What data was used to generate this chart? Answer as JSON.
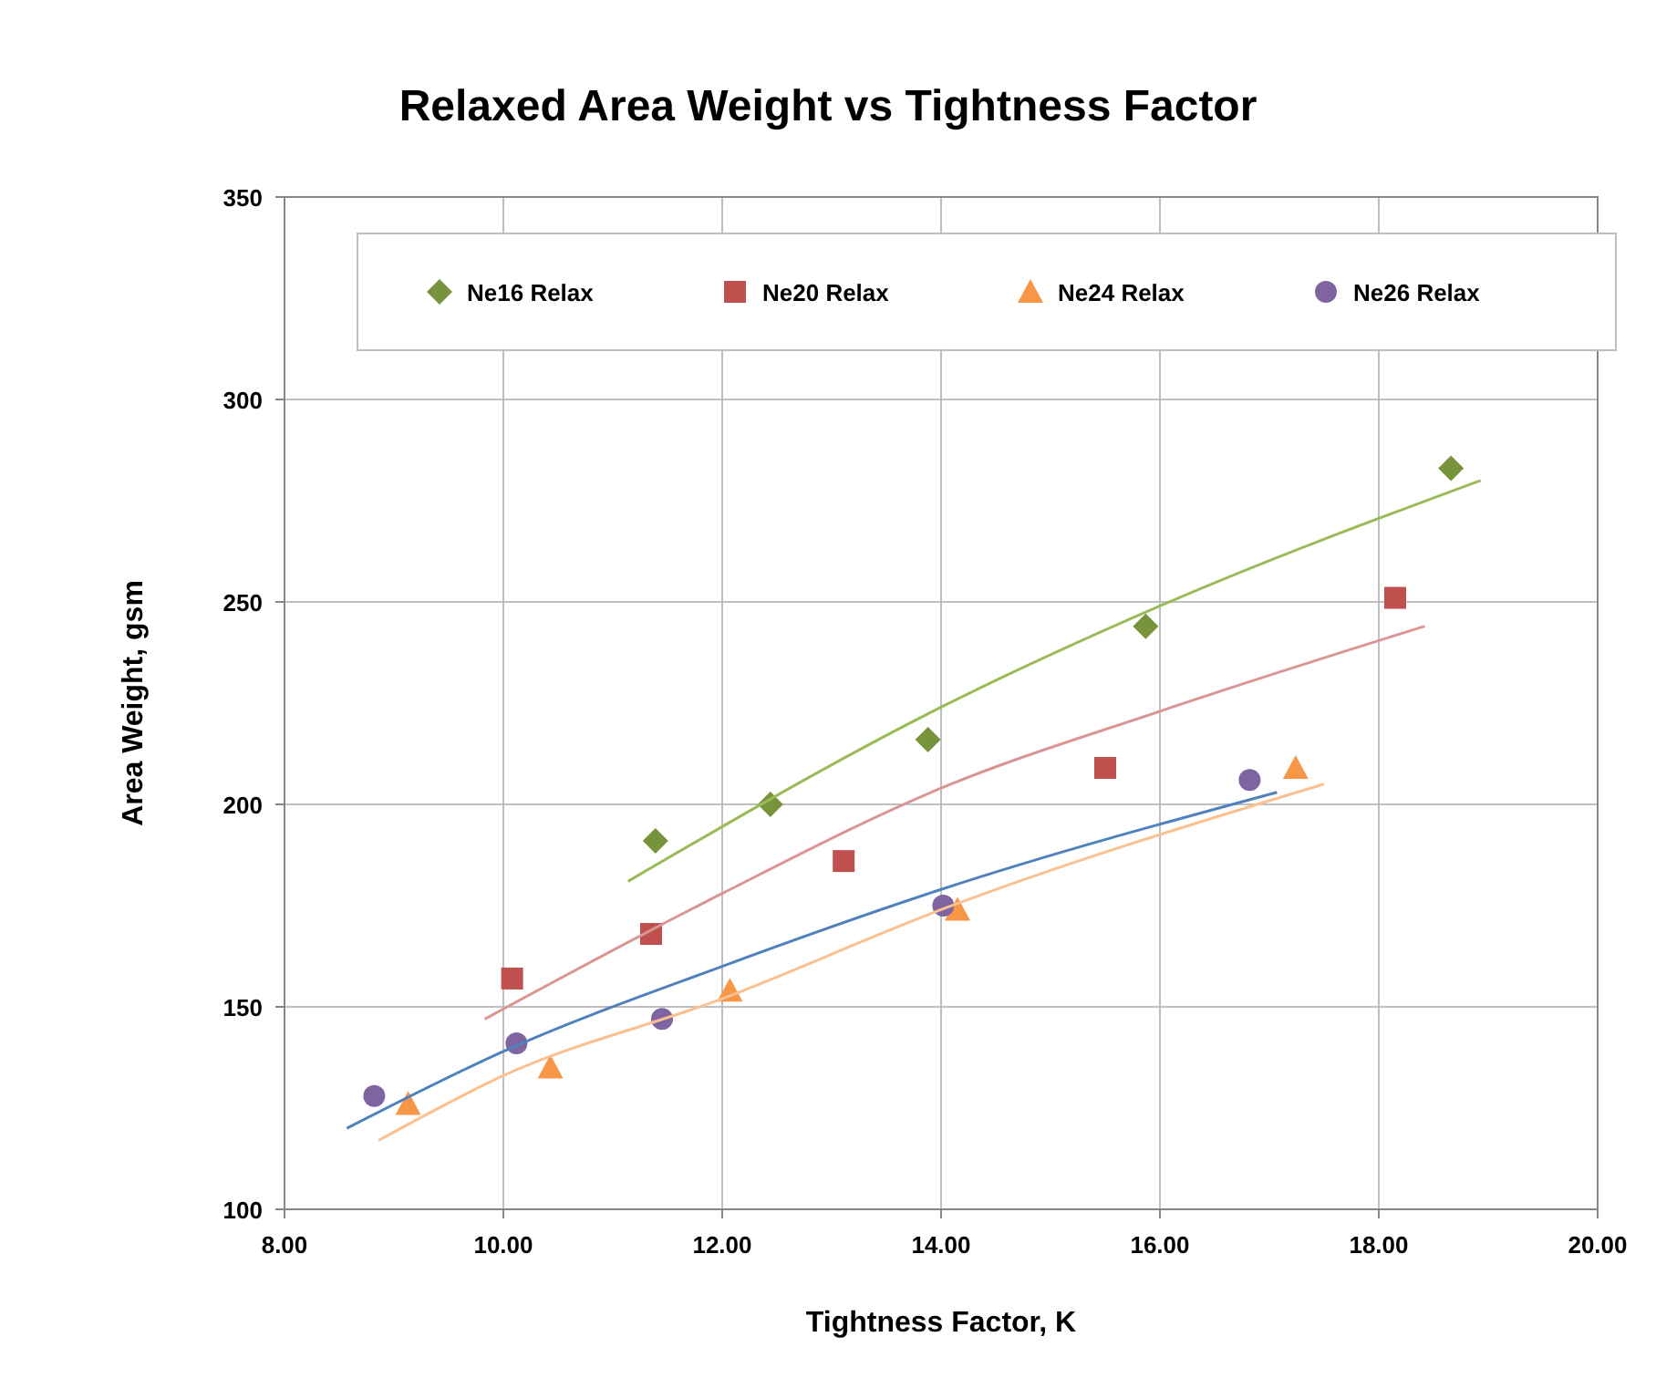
{
  "chart_data": {
    "type": "scatter",
    "title": "Relaxed Area Weight vs Tightness Factor",
    "xlabel": "Tightness Factor, K",
    "ylabel": "Area Weight, gsm",
    "xlim": [
      8,
      20
    ],
    "xticks": [
      {
        "value": 8,
        "label": "8.00"
      },
      {
        "value": 10,
        "label": "10.00"
      },
      {
        "value": 12,
        "label": "12.00"
      },
      {
        "value": 14,
        "label": "14.00"
      },
      {
        "value": 16,
        "label": "16.00"
      },
      {
        "value": 18,
        "label": "18.00"
      },
      {
        "value": 20,
        "label": "20.00"
      }
    ],
    "ylim": [
      100,
      350
    ],
    "yticks": [
      100,
      150,
      200,
      250,
      300,
      350
    ],
    "grid": true,
    "legend": "top",
    "series": [
      {
        "name": "Ne16 Relax",
        "color": "#77933c",
        "marker": "diamond",
        "x": [
          11.39,
          12.44,
          13.88,
          15.87,
          18.66
        ],
        "values": [
          191,
          200,
          216,
          244,
          283
        ]
      },
      {
        "name": "Ne20 Relax",
        "color": "#c0504d",
        "marker": "square",
        "x": [
          10.08,
          11.35,
          13.11,
          15.5,
          18.15
        ],
        "values": [
          157,
          168,
          186,
          209,
          251
        ]
      },
      {
        "name": "Ne24 Relax",
        "color": "#f79646",
        "marker": "triangle",
        "x": [
          9.13,
          10.43,
          12.07,
          14.15,
          17.24
        ],
        "values": [
          126,
          135,
          154,
          174,
          209
        ]
      },
      {
        "name": "Ne26 Relax",
        "color": "#8064a2",
        "marker": "circle",
        "x": [
          8.82,
          10.12,
          11.45,
          14.02,
          16.82
        ],
        "values": [
          128,
          141,
          147,
          175,
          206
        ]
      },
      {
        "type": "line",
        "color": "#9bbb59",
        "marker": "none",
        "x": [
          11.14,
          14,
          16,
          18.93
        ],
        "values": [
          181,
          224,
          249,
          280
        ]
      },
      {
        "type": "line",
        "color": "#d99694",
        "marker": "none",
        "x": [
          9.83,
          12,
          14,
          16,
          18.42
        ],
        "values": [
          147,
          178,
          204,
          223,
          244
        ]
      },
      {
        "type": "line",
        "color": "#fac090",
        "marker": "none",
        "x": [
          8.86,
          10,
          12,
          14,
          17.5
        ],
        "values": [
          117,
          133,
          152,
          174,
          205
        ]
      },
      {
        "type": "line",
        "color": "#4f81bd",
        "marker": "none",
        "x": [
          8.57,
          10,
          12,
          14,
          17.07
        ],
        "values": [
          120,
          139,
          160,
          179,
          203
        ]
      }
    ]
  }
}
